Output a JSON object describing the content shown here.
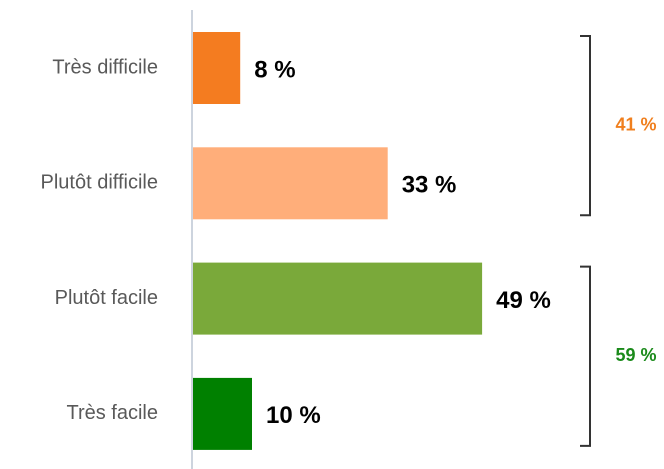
{
  "chart_data": {
    "type": "bar",
    "categories": [
      "Très difficile",
      "Plutôt difficile",
      "Plutôt facile",
      "Très facile"
    ],
    "values": [
      8,
      33,
      49,
      10
    ],
    "value_labels": [
      "8 %",
      "33 %",
      "49 %",
      "10 %"
    ],
    "colors": [
      "#f47c20",
      "#ffae7a",
      "#7aa93a",
      "#008000"
    ],
    "groups": [
      {
        "value": 41,
        "label": "41 %",
        "color": "#f07f1e"
      },
      {
        "value": 59,
        "label": "59 %",
        "color": "#1a8a1a"
      }
    ]
  }
}
